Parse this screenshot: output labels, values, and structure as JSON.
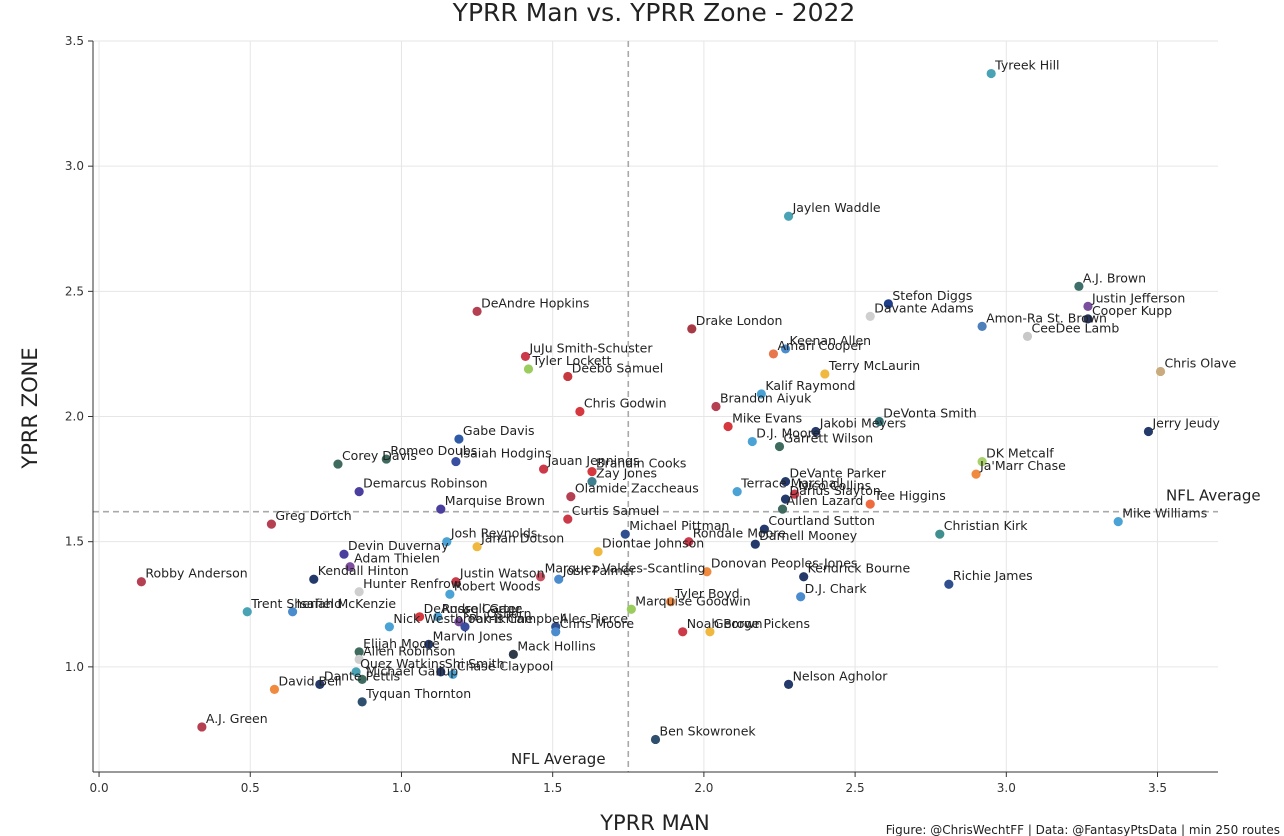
{
  "chart_data": {
    "type": "scatter",
    "title": "YPRR Man vs. YPRR Zone - 2022",
    "xlabel": "YPRR MAN",
    "ylabel": "YPRR ZONE",
    "xlim": [
      -0.02,
      3.7
    ],
    "ylim": [
      0.58,
      3.5
    ],
    "x_ticks": [
      "0.0",
      "0.5",
      "1.0",
      "1.5",
      "2.0",
      "2.5",
      "3.0",
      "3.5"
    ],
    "y_ticks": [
      "1.0",
      "1.5",
      "2.0",
      "2.5",
      "3.0",
      "3.5"
    ],
    "grid": true,
    "reference_lines": {
      "x": 1.75,
      "x_label": "NFL Average",
      "y": 1.62,
      "y_label": "NFL Average"
    },
    "credit": "Figure: @ChrisWechtFF | Data: @FantasyPtsData | min 250 routes",
    "points": [
      {
        "name": "Tyreek Hill",
        "x": 2.95,
        "y": 3.37,
        "color": "#4aa3b5"
      },
      {
        "name": "Jaylen Waddle",
        "x": 2.28,
        "y": 2.8,
        "color": "#4aa3b5"
      },
      {
        "name": "A.J. Brown",
        "x": 3.24,
        "y": 2.52,
        "color": "#3f6f6a"
      },
      {
        "name": "Justin Jefferson",
        "x": 3.27,
        "y": 2.44,
        "color": "#7b4e9e"
      },
      {
        "name": "Stefon Diggs",
        "x": 2.61,
        "y": 2.45,
        "color": "#1f3f8c"
      },
      {
        "name": "Davante Adams",
        "x": 2.55,
        "y": 2.4,
        "color": "#cfcfcf"
      },
      {
        "name": "Amon-Ra St. Brown",
        "x": 2.92,
        "y": 2.36,
        "color": "#4d80bb"
      },
      {
        "name": "Cooper Kupp",
        "x": 3.27,
        "y": 2.39,
        "color": "#26335a"
      },
      {
        "name": "CeeDee Lamb",
        "x": 3.07,
        "y": 2.32,
        "color": "#c8c8c8"
      },
      {
        "name": "Chris Olave",
        "x": 3.51,
        "y": 2.18,
        "color": "#c9ab7d"
      },
      {
        "name": "DeAndre Hopkins",
        "x": 1.25,
        "y": 2.42,
        "color": "#b54051"
      },
      {
        "name": "Drake London",
        "x": 1.96,
        "y": 2.35,
        "color": "#a83a45"
      },
      {
        "name": "Keenan Allen",
        "x": 2.27,
        "y": 2.27,
        "color": "#4a8cce"
      },
      {
        "name": "Amari Cooper",
        "x": 2.23,
        "y": 2.25,
        "color": "#e9774d"
      },
      {
        "name": "JuJu Smith-Schuster",
        "x": 1.41,
        "y": 2.24,
        "color": "#cc3a4a"
      },
      {
        "name": "Terry McLaurin",
        "x": 2.4,
        "y": 2.17,
        "color": "#f0b83f"
      },
      {
        "name": "Deebo Samuel",
        "x": 1.55,
        "y": 2.16,
        "color": "#c6393f"
      },
      {
        "name": "Tyler Lockett",
        "x": 1.42,
        "y": 2.19,
        "color": "#9acd5e"
      },
      {
        "name": "Kalif Raymond",
        "x": 2.19,
        "y": 2.09,
        "color": "#4aa3d4"
      },
      {
        "name": "Brandon Aiyuk",
        "x": 2.04,
        "y": 2.04,
        "color": "#b54051"
      },
      {
        "name": "Chris Godwin",
        "x": 1.59,
        "y": 2.02,
        "color": "#d6383f"
      },
      {
        "name": "DeVonta Smith",
        "x": 2.58,
        "y": 1.98,
        "color": "#2f6f73"
      },
      {
        "name": "Jerry Jeudy",
        "x": 3.47,
        "y": 1.94,
        "color": "#243a6b"
      },
      {
        "name": "Mike Evans",
        "x": 2.08,
        "y": 1.96,
        "color": "#d6383f"
      },
      {
        "name": "Jakobi Meyers",
        "x": 2.37,
        "y": 1.94,
        "color": "#243a6b"
      },
      {
        "name": "D.J. Moore",
        "x": 2.16,
        "y": 1.9,
        "color": "#4aa3d4"
      },
      {
        "name": "Gabe Davis",
        "x": 1.19,
        "y": 1.91,
        "color": "#2f5aa8"
      },
      {
        "name": "Garrett Wilson",
        "x": 2.25,
        "y": 1.88,
        "color": "#3f6b5f"
      },
      {
        "name": "Romeo Doubs",
        "x": 0.95,
        "y": 1.83,
        "color": "#3f6b5f"
      },
      {
        "name": "Isaiah Hodgins",
        "x": 1.18,
        "y": 1.82,
        "color": "#3a4fa0"
      },
      {
        "name": "Corey Davis",
        "x": 0.79,
        "y": 1.81,
        "color": "#3f6b5f"
      },
      {
        "name": "DK Metcalf",
        "x": 2.92,
        "y": 1.82,
        "color": "#a8d06b"
      },
      {
        "name": "Brandin Cooks",
        "x": 1.63,
        "y": 1.78,
        "color": "#d6383f"
      },
      {
        "name": "Jauan Jennings",
        "x": 1.47,
        "y": 1.79,
        "color": "#cc3a4a"
      },
      {
        "name": "Ja'Marr Chase",
        "x": 2.9,
        "y": 1.77,
        "color": "#f08a3f"
      },
      {
        "name": "Zay Jones",
        "x": 1.63,
        "y": 1.74,
        "color": "#3f7f8f"
      },
      {
        "name": "DeVante Parker",
        "x": 2.27,
        "y": 1.74,
        "color": "#243a6b"
      },
      {
        "name": "Terrace Marshall",
        "x": 2.11,
        "y": 1.7,
        "color": "#4aa3d4"
      },
      {
        "name": "Nico Collins",
        "x": 2.3,
        "y": 1.69,
        "color": "#cc3a4a"
      },
      {
        "name": "Demarcus Robinson",
        "x": 0.86,
        "y": 1.7,
        "color": "#4a3f9e"
      },
      {
        "name": "Darius Slayton",
        "x": 2.27,
        "y": 1.67,
        "color": "#243a6b"
      },
      {
        "name": "Olamide Zaccheaus",
        "x": 1.56,
        "y": 1.68,
        "color": "#b54051"
      },
      {
        "name": "Tee Higgins",
        "x": 2.55,
        "y": 1.65,
        "color": "#f06a3f"
      },
      {
        "name": "Allen Lazard",
        "x": 2.26,
        "y": 1.63,
        "color": "#3f6b5f"
      },
      {
        "name": "Marquise Brown",
        "x": 1.13,
        "y": 1.63,
        "color": "#4a3f9e"
      },
      {
        "name": "Michael Pittman",
        "x": 1.74,
        "y": 1.53,
        "color": "#2f4f8f"
      },
      {
        "name": "Mike Williams",
        "x": 3.37,
        "y": 1.58,
        "color": "#4aa3d4"
      },
      {
        "name": "Greg Dortch",
        "x": 0.57,
        "y": 1.57,
        "color": "#b54051"
      },
      {
        "name": "Curtis Samuel",
        "x": 1.55,
        "y": 1.59,
        "color": "#cc3a4a"
      },
      {
        "name": "Courtland Sutton",
        "x": 2.2,
        "y": 1.55,
        "color": "#243a6b"
      },
      {
        "name": "Christian Kirk",
        "x": 2.78,
        "y": 1.53,
        "color": "#3f8f8f"
      },
      {
        "name": "Josh Reynolds",
        "x": 1.15,
        "y": 1.5,
        "color": "#4aa3d4"
      },
      {
        "name": "Jahan Dotson",
        "x": 1.25,
        "y": 1.48,
        "color": "#f0b83f"
      },
      {
        "name": "Rondale Moore",
        "x": 1.95,
        "y": 1.5,
        "color": "#cc3a4a"
      },
      {
        "name": "Darnell Mooney",
        "x": 2.17,
        "y": 1.49,
        "color": "#243a6b"
      },
      {
        "name": "Devin Duvernay",
        "x": 0.81,
        "y": 1.45,
        "color": "#4a3f9e"
      },
      {
        "name": "Diontae Johnson",
        "x": 1.65,
        "y": 1.46,
        "color": "#f0b83f"
      },
      {
        "name": "Adam Thielen",
        "x": 0.83,
        "y": 1.4,
        "color": "#7b4e9e"
      },
      {
        "name": "Donovan Peoples-Jones",
        "x": 2.01,
        "y": 1.38,
        "color": "#f08a3f"
      },
      {
        "name": "Richie James",
        "x": 2.81,
        "y": 1.33,
        "color": "#2f4f8f"
      },
      {
        "name": "Robby Anderson",
        "x": 0.14,
        "y": 1.34,
        "color": "#b54051"
      },
      {
        "name": "Josh Palmer",
        "x": 1.52,
        "y": 1.35,
        "color": "#4a8cce"
      },
      {
        "name": "Marquez Valdes-Scantling",
        "x": 1.46,
        "y": 1.36,
        "color": "#c95060"
      },
      {
        "name": "Kendall Hinton",
        "x": 0.71,
        "y": 1.35,
        "color": "#243a6b"
      },
      {
        "name": "Kendrick Bourne",
        "x": 2.33,
        "y": 1.36,
        "color": "#243a6b"
      },
      {
        "name": "Hunter Renfrow",
        "x": 0.86,
        "y": 1.3,
        "color": "#cfcfcf"
      },
      {
        "name": "Justin Watson",
        "x": 1.18,
        "y": 1.34,
        "color": "#cc3a4a"
      },
      {
        "name": "Robert Woods",
        "x": 1.16,
        "y": 1.29,
        "color": "#4aa3d4"
      },
      {
        "name": "D.J. Chark",
        "x": 2.32,
        "y": 1.28,
        "color": "#4a8cce"
      },
      {
        "name": "Trent Sherfield",
        "x": 0.49,
        "y": 1.22,
        "color": "#4aa3b5"
      },
      {
        "name": "Isaiah McKenzie",
        "x": 0.64,
        "y": 1.22,
        "color": "#4a8cce"
      },
      {
        "name": "DeAndre Carter",
        "x": 1.06,
        "y": 1.2,
        "color": "#d6383f"
      },
      {
        "name": "Marquise Goodwin",
        "x": 1.76,
        "y": 1.23,
        "color": "#9acd5e"
      },
      {
        "name": "Tyler Boyd",
        "x": 1.89,
        "y": 1.26,
        "color": "#f08a3f"
      },
      {
        "name": "Nick Westbrook-Ikhine",
        "x": 0.96,
        "y": 1.16,
        "color": "#4aa3d4"
      },
      {
        "name": "K.J. Osborn",
        "x": 1.19,
        "y": 1.18,
        "color": "#7b4e9e"
      },
      {
        "name": "Alec Pierce",
        "x": 1.51,
        "y": 1.16,
        "color": "#2f4f8f"
      },
      {
        "name": "Noah Brown",
        "x": 1.93,
        "y": 1.14,
        "color": "#cc3a4a"
      },
      {
        "name": "Russell Gage",
        "x": 1.12,
        "y": 1.2,
        "color": "#4aa3d4"
      },
      {
        "name": "Parris Campbell",
        "x": 1.21,
        "y": 1.16,
        "color": "#3a4fa0"
      },
      {
        "name": "Chris Moore",
        "x": 1.51,
        "y": 1.14,
        "color": "#4a8cce"
      },
      {
        "name": "George Pickens",
        "x": 2.02,
        "y": 1.14,
        "color": "#f0b83f"
      },
      {
        "name": "Marvin Jones",
        "x": 1.09,
        "y": 1.09,
        "color": "#243a6b"
      },
      {
        "name": "Elijah Moore",
        "x": 0.86,
        "y": 1.06,
        "color": "#3f6b5f"
      },
      {
        "name": "Allen Robinson",
        "x": 0.86,
        "y": 1.03,
        "color": "#cfcfcf"
      },
      {
        "name": "Mack Hollins",
        "x": 1.37,
        "y": 1.05,
        "color": "#2f3a4a"
      },
      {
        "name": "Michael Gallup",
        "x": 0.87,
        "y": 0.95,
        "color": "#3f6b5f"
      },
      {
        "name": "Quez Watkins",
        "x": 0.85,
        "y": 0.98,
        "color": "#4aa3b5"
      },
      {
        "name": "Chase Claypool",
        "x": 1.17,
        "y": 0.97,
        "color": "#4aa3d4"
      },
      {
        "name": "David Bell",
        "x": 0.58,
        "y": 0.91,
        "color": "#f08a3f"
      },
      {
        "name": "Dante Pettis",
        "x": 0.73,
        "y": 0.93,
        "color": "#243a6b"
      },
      {
        "name": "Shi Smith",
        "x": 1.13,
        "y": 0.98,
        "color": "#243a6b"
      },
      {
        "name": "Nelson Agholor",
        "x": 2.28,
        "y": 0.93,
        "color": "#243a6b"
      },
      {
        "name": "Tyquan Thornton",
        "x": 0.87,
        "y": 0.86,
        "color": "#2f4f6f"
      },
      {
        "name": "A.J. Green",
        "x": 0.34,
        "y": 0.76,
        "color": "#b54051"
      },
      {
        "name": "Ben Skowronek",
        "x": 1.84,
        "y": 0.71,
        "color": "#2f4f6f"
      }
    ]
  }
}
